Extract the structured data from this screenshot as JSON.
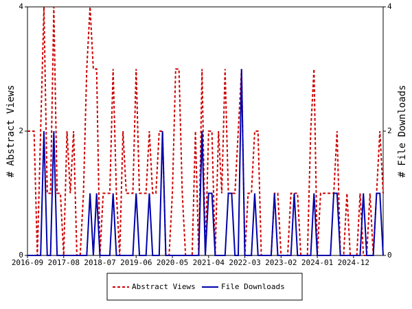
{
  "chart_data": {
    "type": "line",
    "ylabel": "# Abstract Views",
    "y2label": "# File Downloads",
    "categories": [
      "2016-09",
      null,
      null,
      null,
      null,
      null,
      null,
      null,
      null,
      null,
      null,
      "2017-08",
      null,
      null,
      null,
      null,
      null,
      null,
      null,
      null,
      null,
      null,
      "2018-07",
      null,
      null,
      null,
      null,
      null,
      null,
      null,
      null,
      null,
      null,
      "2019-06",
      null,
      null,
      null,
      null,
      null,
      null,
      null,
      null,
      null,
      null,
      "2020-05",
      null,
      null,
      null,
      null,
      null,
      null,
      null,
      null,
      null,
      null,
      "2021-04",
      null,
      null,
      null,
      null,
      null,
      null,
      null,
      null,
      null,
      null,
      "2022-03",
      null,
      null,
      null,
      null,
      null,
      null,
      null,
      null,
      null,
      null,
      "2023-02",
      null,
      null,
      null,
      null,
      null,
      null,
      null,
      null,
      null,
      null,
      "2024-01",
      null,
      null,
      null,
      null,
      null,
      null,
      null,
      null,
      null,
      null,
      "2024-12",
      null,
      null,
      null,
      null,
      null,
      null,
      null,
      null,
      null
    ],
    "series": [
      {
        "name": "Abstract Views",
        "color": "#cc0000",
        "dash": true,
        "axis": "y",
        "values": [
          2,
          2,
          2,
          0,
          2,
          4,
          1,
          1,
          4,
          1,
          1,
          0,
          2,
          1,
          2,
          0,
          0,
          1,
          3,
          4,
          3,
          3,
          0,
          1,
          1,
          1,
          3,
          1,
          0,
          2,
          1,
          1,
          1,
          3,
          1,
          1,
          1,
          2,
          1,
          1,
          2,
          2,
          0,
          0,
          1,
          3,
          3,
          1,
          0,
          0,
          0,
          2,
          0,
          3,
          0,
          2,
          2,
          0,
          2,
          1,
          3,
          1,
          1,
          1,
          2,
          3,
          0,
          1,
          1,
          2,
          2,
          0,
          0,
          0,
          0,
          1,
          1,
          0,
          0,
          0,
          1,
          1,
          1,
          0,
          0,
          0,
          2,
          3,
          0,
          1,
          1,
          1,
          1,
          1,
          2,
          0,
          0,
          1,
          0,
          0,
          0,
          1,
          0,
          0,
          1,
          0,
          1,
          2,
          1
        ]
      },
      {
        "name": "File Downloads",
        "color": "#0000aa",
        "dash": false,
        "axis": "y2",
        "values": [
          0,
          0,
          0,
          0,
          0,
          2,
          0,
          0,
          2,
          0,
          0,
          0,
          0,
          0,
          0,
          0,
          0,
          0,
          0,
          1,
          0,
          1,
          0,
          0,
          0,
          0,
          1,
          0,
          0,
          0,
          0,
          0,
          0,
          1,
          0,
          0,
          0,
          1,
          0,
          0,
          0,
          2,
          0,
          0,
          0,
          0,
          0,
          0,
          0,
          0,
          0,
          0,
          0,
          2,
          0,
          1,
          1,
          0,
          0,
          0,
          0,
          1,
          1,
          0,
          0,
          3,
          0,
          0,
          0,
          1,
          0,
          0,
          0,
          0,
          0,
          1,
          0,
          0,
          0,
          0,
          0,
          1,
          0,
          0,
          0,
          0,
          0,
          1,
          0,
          0,
          0,
          0,
          0,
          1,
          1,
          0,
          0,
          0,
          0,
          0,
          0,
          0,
          1,
          0,
          0,
          0,
          1,
          1,
          0
        ]
      }
    ],
    "ylim": [
      0,
      4
    ],
    "yticks": [
      0,
      2,
      4
    ],
    "y2lim": [
      0,
      4
    ],
    "y2ticks": [
      0,
      2,
      4
    ],
    "grid": false,
    "legend": "bottom"
  }
}
